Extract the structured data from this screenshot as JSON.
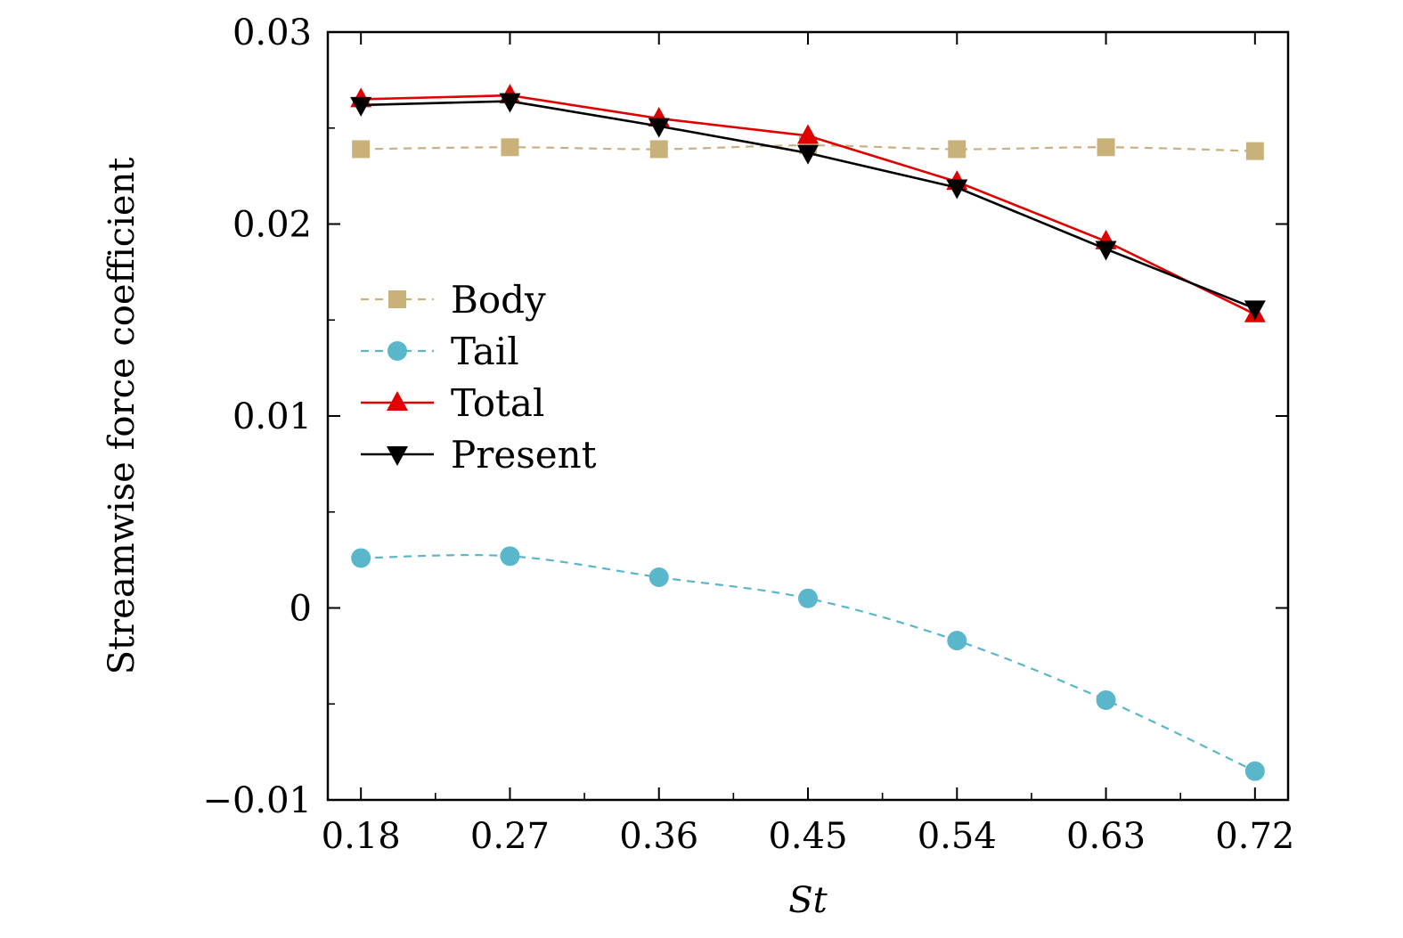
{
  "chart_data": {
    "type": "line",
    "xlabel": "St",
    "ylabel": "Streamwise force coefficient",
    "x": [
      0.18,
      0.27,
      0.36,
      0.45,
      0.54,
      0.63,
      0.72
    ],
    "x_tick_labels": [
      "0.18",
      "0.27",
      "0.36",
      "0.45",
      "0.54",
      "0.63",
      "0.72"
    ],
    "xlim": [
      0.16,
      0.74
    ],
    "ylim": [
      -0.01,
      0.03
    ],
    "y_ticks": [
      -0.01,
      0,
      0.01,
      0.02,
      0.03
    ],
    "y_tick_labels": [
      "−0.01",
      "0",
      "0.01",
      "0.02",
      "0.03"
    ],
    "grid": false,
    "legend_position": "middle-left",
    "series": [
      {
        "name": "Body",
        "values": [
          0.0239,
          0.024,
          0.0239,
          0.0241,
          0.0239,
          0.024,
          0.0238
        ],
        "color": "#c8b27a",
        "marker": "square",
        "line_style": "dashed"
      },
      {
        "name": "Tail",
        "values": [
          0.0026,
          0.0027,
          0.0016,
          0.0005,
          -0.0017,
          -0.0048,
          -0.0085
        ],
        "color": "#5ab7cb",
        "marker": "circle",
        "line_style": "dashed"
      },
      {
        "name": "Total",
        "values": [
          0.0265,
          0.0267,
          0.0255,
          0.0246,
          0.0222,
          0.0191,
          0.0153
        ],
        "color": "#e00000",
        "marker": "triangle-up",
        "line_style": "solid"
      },
      {
        "name": "Present",
        "values": [
          0.0262,
          0.0264,
          0.0251,
          0.0237,
          0.0219,
          0.0187,
          0.0156
        ],
        "color": "#000000",
        "marker": "triangle-down",
        "line_style": "solid"
      }
    ]
  }
}
